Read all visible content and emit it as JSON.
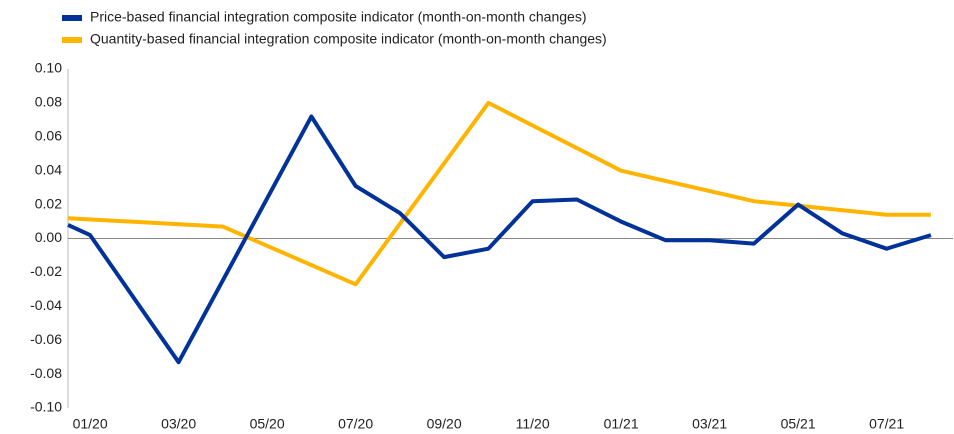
{
  "chart_data": {
    "type": "line",
    "series": [
      {
        "name": "Price-based financial integration composite indicator (month-on-month changes)",
        "color": "#003299",
        "x": [
          -0.5,
          0,
          2,
          5,
          6,
          7,
          8,
          9,
          10,
          11,
          12,
          13,
          14,
          15,
          16,
          17,
          18,
          19
        ],
        "values": [
          0.008,
          0.002,
          -0.073,
          0.072,
          0.031,
          0.015,
          -0.011,
          -0.006,
          0.022,
          0.023,
          0.01,
          -0.001,
          -0.001,
          -0.003,
          0.02,
          0.003,
          -0.006,
          0.002
        ]
      },
      {
        "name": "Quantity-based financial integration composite indicator (month-on-month changes)",
        "color": "#ffb400",
        "x": [
          -0.5,
          3,
          6,
          9,
          12,
          15,
          18,
          19
        ],
        "values": [
          0.012,
          0.007,
          -0.027,
          0.08,
          0.04,
          0.022,
          0.014,
          0.014
        ]
      }
    ],
    "xlim": [
      -0.5,
      19.5
    ],
    "xticks": [
      {
        "value": 0,
        "label": "01/20"
      },
      {
        "value": 2,
        "label": "03/20"
      },
      {
        "value": 4,
        "label": "05/20"
      },
      {
        "value": 6,
        "label": "07/20"
      },
      {
        "value": 8,
        "label": "09/20"
      },
      {
        "value": 10,
        "label": "11/20"
      },
      {
        "value": 12,
        "label": "01/21"
      },
      {
        "value": 14,
        "label": "03/21"
      },
      {
        "value": 16,
        "label": "05/21"
      },
      {
        "value": 18,
        "label": "07/21"
      }
    ],
    "ylim": [
      -0.1,
      0.1
    ],
    "yticks": [
      {
        "value": 0.1,
        "label": "0.10"
      },
      {
        "value": 0.08,
        "label": "0.08"
      },
      {
        "value": 0.06,
        "label": "0.06"
      },
      {
        "value": 0.04,
        "label": "0.04"
      },
      {
        "value": 0.02,
        "label": "0.02"
      },
      {
        "value": 0,
        "label": "0.00"
      },
      {
        "value": -0.02,
        "label": "-0.02"
      },
      {
        "value": -0.04,
        "label": "-0.04"
      },
      {
        "value": -0.06,
        "label": "-0.06"
      },
      {
        "value": -0.08,
        "label": "-0.08"
      },
      {
        "value": -0.1,
        "label": "-0.10"
      }
    ],
    "grid": false
  }
}
